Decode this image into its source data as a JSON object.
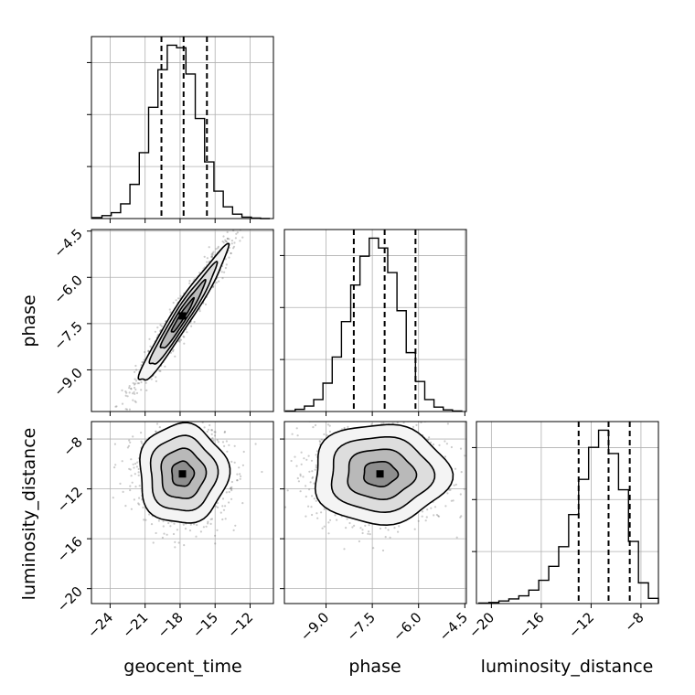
{
  "chart_data": {
    "type": "corner",
    "parameters": [
      "geocent_time",
      "phase",
      "luminosity_distance"
    ],
    "ranges": {
      "geocent_time": [
        -25.6,
        -10.0
      ],
      "phase": [
        -10.35,
        -4.45
      ],
      "luminosity_distance": [
        -21.2,
        -6.6
      ]
    },
    "ticks": {
      "geocent_time": [
        -24,
        -21,
        -18,
        -15,
        -12
      ],
      "phase": [
        -9.0,
        -7.5,
        -6.0,
        -4.5
      ],
      "luminosity_distance": [
        -20,
        -16,
        -12,
        -8
      ]
    },
    "tick_labels": {
      "geocent_time": [
        "−24",
        "−21",
        "−18",
        "−15",
        "−12"
      ],
      "phase": [
        "−9.0",
        "−7.5",
        "−6.0",
        "−4.5"
      ],
      "luminosity_distance": [
        "−20",
        "−16",
        "−12",
        "−8"
      ]
    },
    "marginals": {
      "geocent_time": {
        "bin_edges": [
          -25.5,
          -24.7,
          -23.9,
          -23.1,
          -22.3,
          -21.5,
          -20.7,
          -19.9,
          -19.1,
          -18.3,
          -17.5,
          -16.7,
          -15.9,
          -15.1,
          -14.3,
          -13.5,
          -12.7,
          -11.9,
          -11.1,
          -10.3
        ],
        "counts": [
          2,
          6,
          12,
          30,
          70,
          135,
          228,
          305,
          355,
          350,
          296,
          205,
          116,
          56,
          24,
          9,
          3,
          1,
          0
        ],
        "quantiles": [
          -19.6,
          -17.7,
          -15.7
        ]
      },
      "phase": {
        "bin_edges": [
          -10.3,
          -10.0,
          -9.7,
          -9.4,
          -9.1,
          -8.8,
          -8.5,
          -8.2,
          -7.9,
          -7.6,
          -7.3,
          -7.0,
          -6.7,
          -6.4,
          -6.1,
          -5.8,
          -5.5,
          -5.2,
          -4.9,
          -4.6
        ],
        "counts": [
          1,
          4,
          10,
          22,
          52,
          100,
          165,
          232,
          285,
          318,
          300,
          255,
          185,
          108,
          55,
          22,
          8,
          3,
          1
        ],
        "quantiles": [
          -8.1,
          -7.1,
          -6.1
        ]
      },
      "luminosity_distance": {
        "bin_edges": [
          -21.0,
          -20.2,
          -19.4,
          -18.6,
          -17.8,
          -17.0,
          -16.2,
          -15.4,
          -14.6,
          -13.8,
          -13.0,
          -12.2,
          -11.4,
          -10.6,
          -9.8,
          -9.0,
          -8.2,
          -7.4,
          -6.6
        ],
        "counts": [
          1,
          2,
          5,
          9,
          15,
          26,
          45,
          72,
          110,
          172,
          240,
          302,
          335,
          290,
          220,
          120,
          40,
          10
        ],
        "quantiles": [
          -13.0,
          -10.6,
          -8.9
        ]
      }
    },
    "pairs": [
      {
        "x": "geocent_time",
        "y": "phase",
        "mean": [
          -17.8,
          -7.25
        ],
        "std": [
          1.9,
          1.1
        ],
        "correlation": 0.965,
        "hist2d_bins": [
          [
            -21,
            -18,
            -15
          ],
          [
            -8.5,
            -7.0,
            -5.5
          ]
        ]
      },
      {
        "x": "geocent_time",
        "y": "luminosity_distance",
        "mean": [
          -17.8,
          -10.8
        ],
        "std": [
          1.9,
          2.0
        ],
        "correlation": 0.0
      },
      {
        "x": "phase",
        "y": "luminosity_distance",
        "mean": [
          -7.25,
          -10.8
        ],
        "std": [
          1.1,
          2.0
        ],
        "correlation": 0.0
      }
    ],
    "contour_levels_sigma": [
      0.5,
      1.0,
      1.5,
      2.0
    ],
    "grid": true
  }
}
